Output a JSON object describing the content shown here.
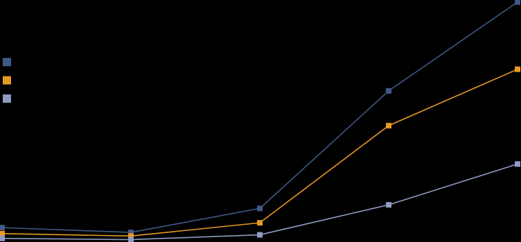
{
  "chart_data": {
    "type": "line",
    "categories": [
      null,
      null,
      null,
      null,
      null
    ],
    "series": [
      {
        "color": "#3f5a86",
        "values": [
          6,
          4,
          14,
          63,
          100
        ]
      },
      {
        "color": "#e89a25",
        "values": [
          3.5,
          2.5,
          8,
          48.5,
          72
        ]
      },
      {
        "color": "#8f9cc4",
        "values": [
          1.5,
          1,
          3,
          15.5,
          32.5
        ]
      }
    ],
    "ylim": [
      0,
      100
    ],
    "legend": "left"
  }
}
